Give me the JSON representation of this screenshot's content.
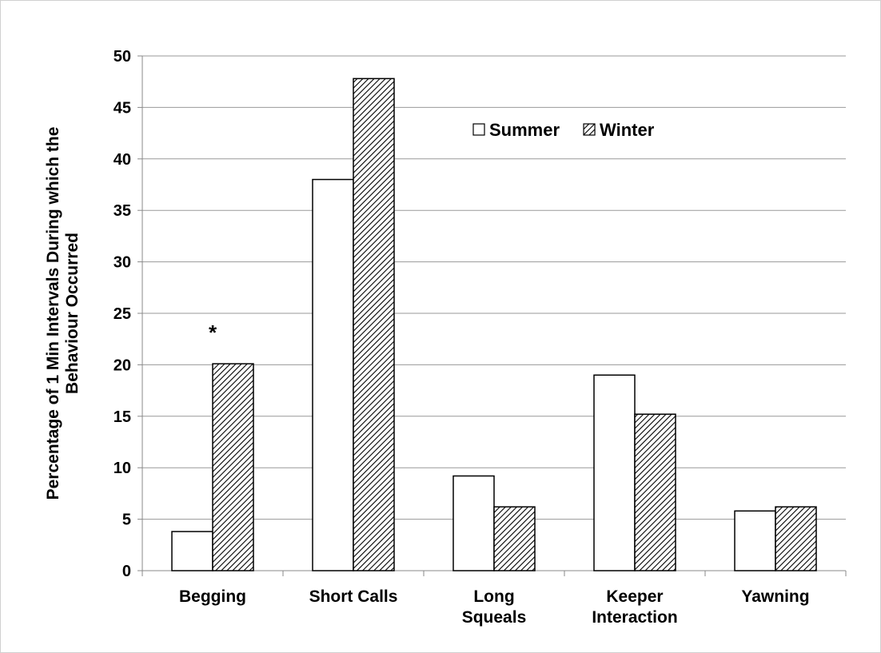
{
  "chart_data": {
    "type": "bar",
    "ylabel": "Percentage of 1 Min Intervals During which the\nBehaviour Occurred",
    "categories": [
      "Begging",
      "Short Calls",
      "Long\nSqueals",
      "Keeper\nInteraction",
      "Yawning"
    ],
    "series": [
      {
        "name": "Summer",
        "color": "#ffffff",
        "pattern": "solid",
        "values": [
          3.8,
          38,
          9.2,
          19,
          5.8
        ]
      },
      {
        "name": "Winter",
        "color": "#000000",
        "pattern": "hatch",
        "values": [
          20.1,
          47.8,
          6.2,
          15.2,
          6.2
        ]
      }
    ],
    "annotations": [
      {
        "text": "*",
        "category": 0,
        "series": 1
      }
    ],
    "ylim": [
      0,
      50
    ],
    "yticks": [
      0,
      5,
      10,
      15,
      20,
      25,
      30,
      35,
      40,
      45,
      50
    ],
    "grid": true,
    "legend": "top-center"
  }
}
